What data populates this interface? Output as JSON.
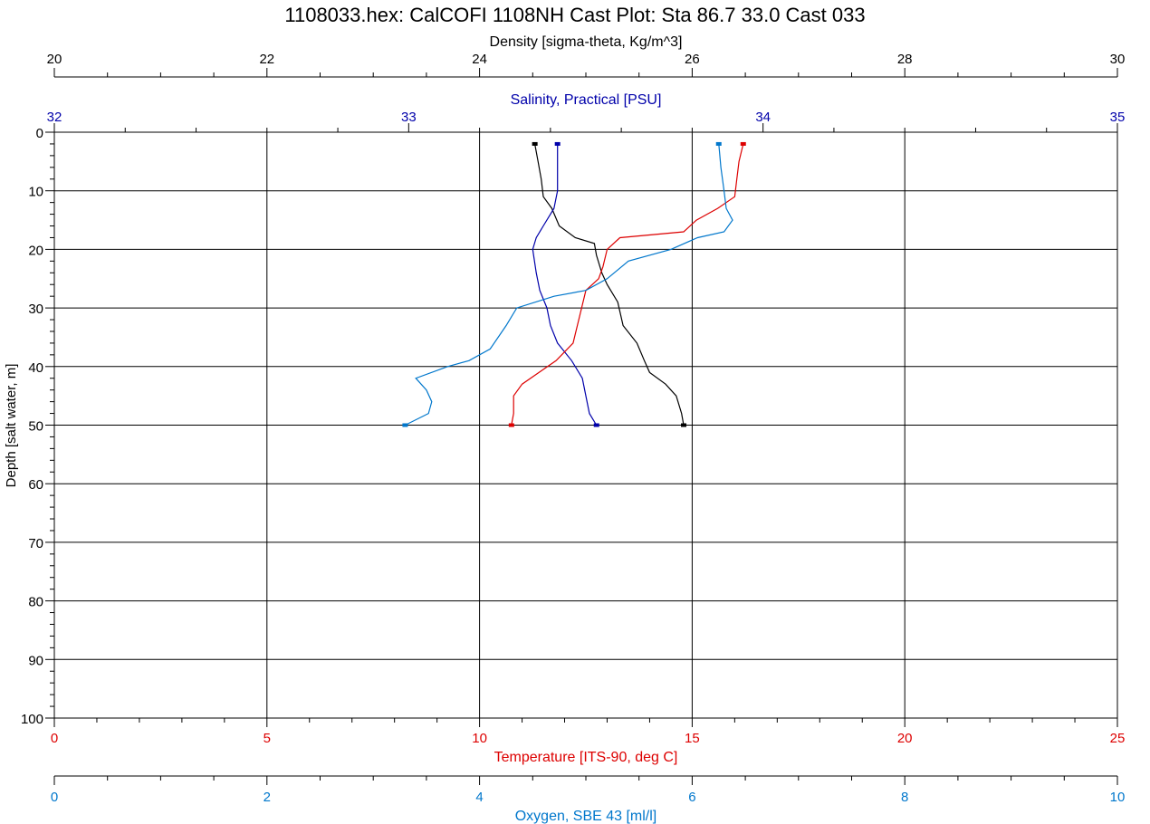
{
  "chart_data": {
    "type": "line",
    "title": "1108033.hex: CalCOFI 1108NH Cast Plot: Sta 86.7 33.0  Cast 033",
    "y_axis": {
      "label": "Depth [salt water, m]",
      "range": [
        0,
        100
      ],
      "inverted": true,
      "ticks": [
        "0",
        "10",
        "20",
        "30",
        "40",
        "50",
        "60",
        "70",
        "80",
        "90",
        "100"
      ]
    },
    "x_axes": [
      {
        "id": "density",
        "label": "Density [sigma-theta, Kg/m^3]",
        "position": "top",
        "range": [
          20,
          30
        ],
        "ticks": [
          "20",
          "22",
          "24",
          "26",
          "28",
          "30"
        ],
        "color": "#000000"
      },
      {
        "id": "salinity",
        "label": "Salinity, Practical [PSU]",
        "position": "top",
        "range": [
          32,
          35
        ],
        "ticks": [
          "32",
          "33",
          "34",
          "35"
        ],
        "color": "#0000aa"
      },
      {
        "id": "temperature",
        "label": "Temperature [ITS-90, deg C]",
        "position": "bottom",
        "range": [
          0,
          25
        ],
        "ticks": [
          "0",
          "5",
          "10",
          "15",
          "20",
          "25"
        ],
        "color": "#dd0000"
      },
      {
        "id": "oxygen",
        "label": "Oxygen, SBE 43 [ml/l]",
        "position": "bottom",
        "range": [
          0,
          10
        ],
        "ticks": [
          "0",
          "2",
          "4",
          "6",
          "8",
          "10"
        ],
        "color": "#0077cc"
      }
    ],
    "grid": true,
    "series": [
      {
        "axis": "density",
        "color": "#000000",
        "points": [
          [
            24.52,
            2
          ],
          [
            24.55,
            5
          ],
          [
            24.58,
            8
          ],
          [
            24.6,
            11
          ],
          [
            24.68,
            13
          ],
          [
            24.75,
            16
          ],
          [
            24.9,
            18
          ],
          [
            25.08,
            19
          ],
          [
            25.1,
            21
          ],
          [
            25.15,
            24
          ],
          [
            25.2,
            26
          ],
          [
            25.3,
            29
          ],
          [
            25.35,
            33
          ],
          [
            25.48,
            36
          ],
          [
            25.55,
            39
          ],
          [
            25.6,
            41
          ],
          [
            25.75,
            43
          ],
          [
            25.85,
            45
          ],
          [
            25.9,
            48
          ],
          [
            25.92,
            50
          ]
        ]
      },
      {
        "axis": "salinity",
        "color": "#0000aa",
        "points": [
          [
            33.42,
            2
          ],
          [
            33.42,
            6
          ],
          [
            33.42,
            10
          ],
          [
            33.41,
            13
          ],
          [
            33.38,
            16
          ],
          [
            33.36,
            18
          ],
          [
            33.35,
            20
          ],
          [
            33.36,
            24
          ],
          [
            33.37,
            27
          ],
          [
            33.39,
            30
          ],
          [
            33.4,
            33
          ],
          [
            33.42,
            36
          ],
          [
            33.46,
            39
          ],
          [
            33.49,
            42
          ],
          [
            33.5,
            45
          ],
          [
            33.51,
            48
          ],
          [
            33.53,
            50
          ]
        ]
      },
      {
        "axis": "temperature",
        "color": "#dd0000",
        "points": [
          [
            16.2,
            2
          ],
          [
            16.1,
            5
          ],
          [
            16.05,
            8
          ],
          [
            16.0,
            11
          ],
          [
            15.6,
            13
          ],
          [
            15.1,
            15
          ],
          [
            14.8,
            17
          ],
          [
            13.3,
            18
          ],
          [
            13.0,
            20
          ],
          [
            12.9,
            23
          ],
          [
            12.8,
            25
          ],
          [
            12.5,
            27
          ],
          [
            12.4,
            30
          ],
          [
            12.3,
            33
          ],
          [
            12.2,
            36
          ],
          [
            11.8,
            39
          ],
          [
            11.4,
            41
          ],
          [
            11.0,
            43
          ],
          [
            10.8,
            45
          ],
          [
            10.8,
            48
          ],
          [
            10.75,
            50
          ]
        ]
      },
      {
        "axis": "oxygen",
        "color": "#0077cc",
        "points": [
          [
            6.25,
            2
          ],
          [
            6.27,
            6
          ],
          [
            6.3,
            10
          ],
          [
            6.32,
            13
          ],
          [
            6.38,
            15
          ],
          [
            6.3,
            17
          ],
          [
            6.05,
            18
          ],
          [
            5.8,
            20
          ],
          [
            5.4,
            22
          ],
          [
            5.2,
            25
          ],
          [
            5.0,
            27
          ],
          [
            4.7,
            28
          ],
          [
            4.35,
            30
          ],
          [
            4.25,
            33
          ],
          [
            4.1,
            37
          ],
          [
            3.9,
            39
          ],
          [
            3.7,
            40
          ],
          [
            3.4,
            42
          ],
          [
            3.5,
            44
          ],
          [
            3.55,
            46
          ],
          [
            3.52,
            48
          ],
          [
            3.3,
            50
          ]
        ]
      }
    ]
  }
}
